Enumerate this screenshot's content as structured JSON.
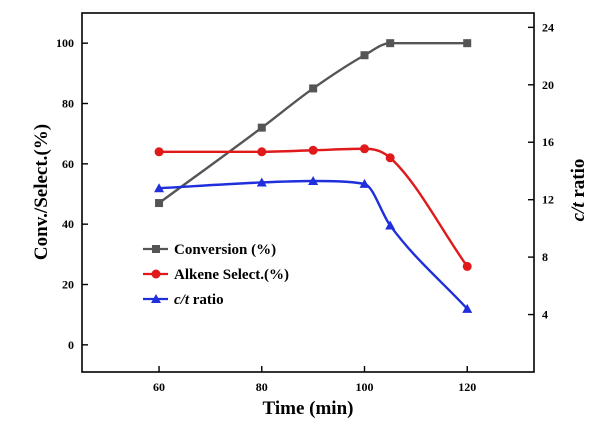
{
  "chart_data": {
    "type": "line",
    "x_label": "Time (min)",
    "y_left_label": "Conv./Select.(%)",
    "y_right_label": {
      "italic": "c/t",
      "normal": " ratio"
    },
    "x_range": [
      45,
      133
    ],
    "y_left_range": [
      -9,
      110
    ],
    "y_right_range": [
      0,
      25
    ],
    "x_ticks": [
      60,
      80,
      100,
      120
    ],
    "y_left_ticks": [
      0,
      20,
      40,
      60,
      80,
      100
    ],
    "y_right_ticks": [
      4,
      8,
      12,
      16,
      20,
      24
    ],
    "legend_position": "lower-left",
    "series": [
      {
        "name": "Conversion (%)",
        "axis": "left",
        "color": "#555555",
        "marker": "square",
        "x": [
          60,
          80,
          90,
          100,
          105,
          120
        ],
        "y": [
          47,
          72,
          85,
          96,
          100,
          100
        ]
      },
      {
        "name": "Alkene Select.(%)",
        "axis": "left",
        "color": "#e0191b",
        "marker": "circle",
        "x": [
          60,
          80,
          90,
          100,
          105,
          120
        ],
        "y": [
          64,
          64,
          64.5,
          65,
          62,
          26
        ]
      },
      {
        "name_italic": "c/t",
        "name_rest": " ratio",
        "axis": "right",
        "color": "#1f2fdb",
        "marker": "triangle",
        "x": [
          60,
          80,
          90,
          100,
          105,
          120
        ],
        "y": [
          12.8,
          13.2,
          13.3,
          13.1,
          10.2,
          4.4
        ]
      }
    ]
  }
}
